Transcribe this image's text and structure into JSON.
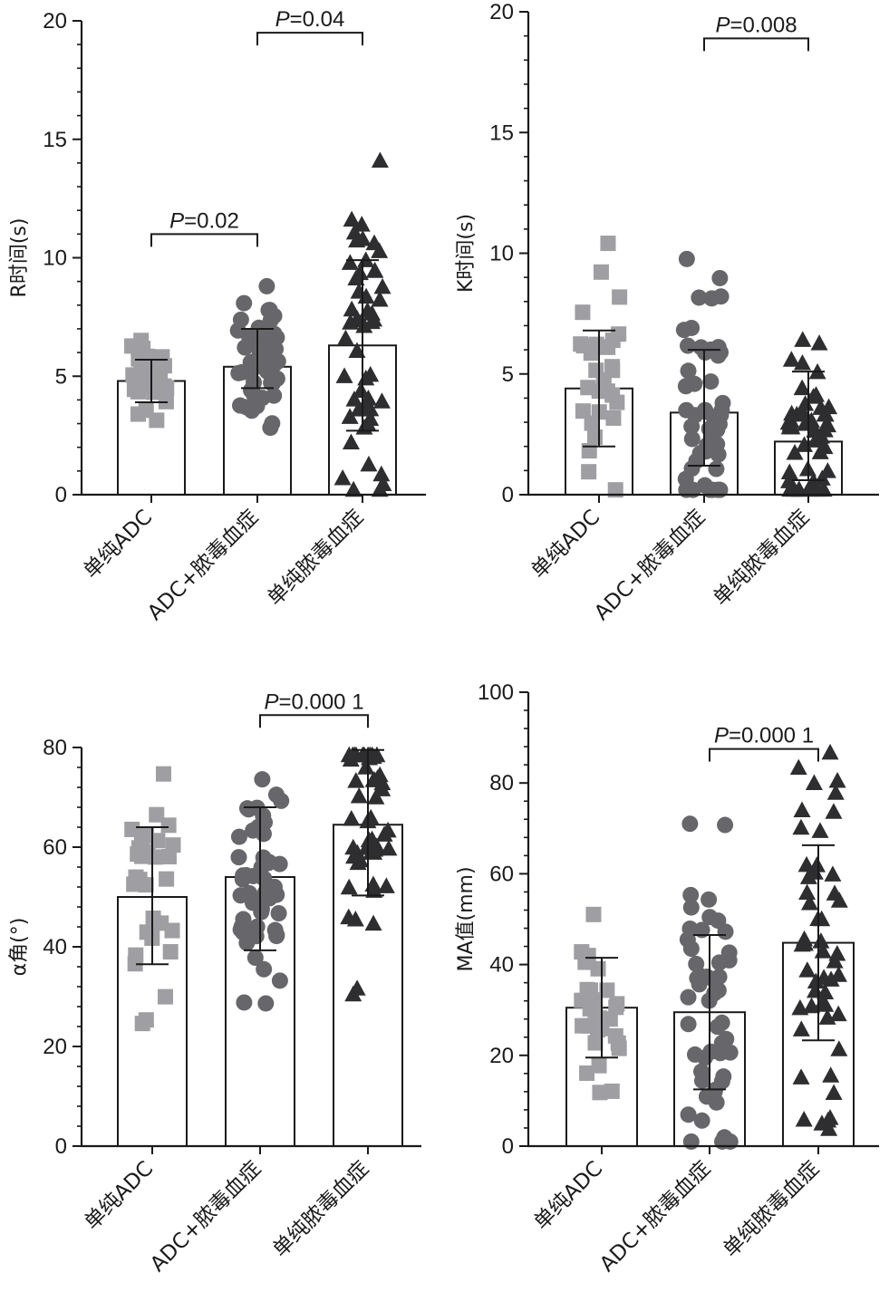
{
  "colors": {
    "g1": "#9e9ea3",
    "g2": "#66666b",
    "g3": "#2e2e31",
    "axis": "#1a1a1a"
  },
  "chart_data": [
    {
      "id": "panel-r-time",
      "type": "bar",
      "ylabel": "R时间(s)",
      "ylim": [
        0,
        20
      ],
      "yticks": [
        0,
        5,
        10,
        15,
        20
      ],
      "categories": [
        "单纯ADC",
        "ADC+脓毒血症",
        "单纯脓毒血症"
      ],
      "series": [
        {
          "name": "mean",
          "values": [
            4.8,
            5.4,
            6.3
          ]
        }
      ],
      "error_bars": [
        [
          3.9,
          5.7
        ],
        [
          4.5,
          7.0
        ],
        [
          2.7,
          9.9
        ]
      ],
      "markers": [
        "square",
        "circle",
        "triangle"
      ],
      "annotations": [
        {
          "text": "P=0.02",
          "from": 0,
          "to": 1,
          "y": 11.0
        },
        {
          "text": "P=0.04",
          "from": 1,
          "to": 2,
          "y": 19.5
        }
      ]
    },
    {
      "id": "panel-k-time",
      "type": "bar",
      "ylabel": "K时间(s)",
      "ylim": [
        0,
        20
      ],
      "yticks": [
        0,
        5,
        10,
        15,
        20
      ],
      "categories": [
        "单纯ADC",
        "ADC+脓毒血症",
        "单纯脓毒血症"
      ],
      "series": [
        {
          "name": "mean",
          "values": [
            4.4,
            3.4,
            2.2
          ]
        }
      ],
      "error_bars": [
        [
          2.0,
          6.8
        ],
        [
          1.2,
          6.0
        ],
        [
          0.6,
          5.1
        ]
      ],
      "markers": [
        "square",
        "circle",
        "triangle"
      ],
      "annotations": [
        {
          "text": "P=0.008",
          "from": 1,
          "to": 2,
          "y": 18.9
        }
      ]
    },
    {
      "id": "panel-alpha-angle",
      "type": "bar",
      "ylabel": "α角(°)",
      "ylim": [
        0,
        80
      ],
      "yticks": [
        0,
        20,
        40,
        60,
        80
      ],
      "categories": [
        "单纯ADC",
        "ADC+脓毒血症",
        "单纯脓毒血症"
      ],
      "series": [
        {
          "name": "mean",
          "values": [
            50,
            54,
            64.5
          ]
        }
      ],
      "error_bars": [
        [
          36.5,
          64
        ],
        [
          39.3,
          68
        ],
        [
          50.3,
          79.5
        ]
      ],
      "markers": [
        "square",
        "circle",
        "triangle"
      ],
      "annotations": [
        {
          "text": "P=0.000 1",
          "from": 1,
          "to": 2,
          "y": 86.5
        }
      ]
    },
    {
      "id": "panel-ma-value",
      "type": "bar",
      "ylabel": "MA值(mm)",
      "ylim": [
        0,
        100
      ],
      "yticks": [
        0,
        20,
        40,
        60,
        80,
        100
      ],
      "categories": [
        "单纯ADC",
        "ADC+脓毒血症",
        "单纯脓毒血症"
      ],
      "series": [
        {
          "name": "mean",
          "values": [
            30.5,
            29.5,
            44.8
          ]
        }
      ],
      "error_bars": [
        [
          19.5,
          41.5
        ],
        [
          12.5,
          46.5
        ],
        [
          23.3,
          66.3
        ]
      ],
      "markers": [
        "square",
        "circle",
        "triangle"
      ],
      "annotations": [
        {
          "text": "P=0.000 1",
          "from": 1,
          "to": 2,
          "y": 87.5
        }
      ]
    }
  ]
}
